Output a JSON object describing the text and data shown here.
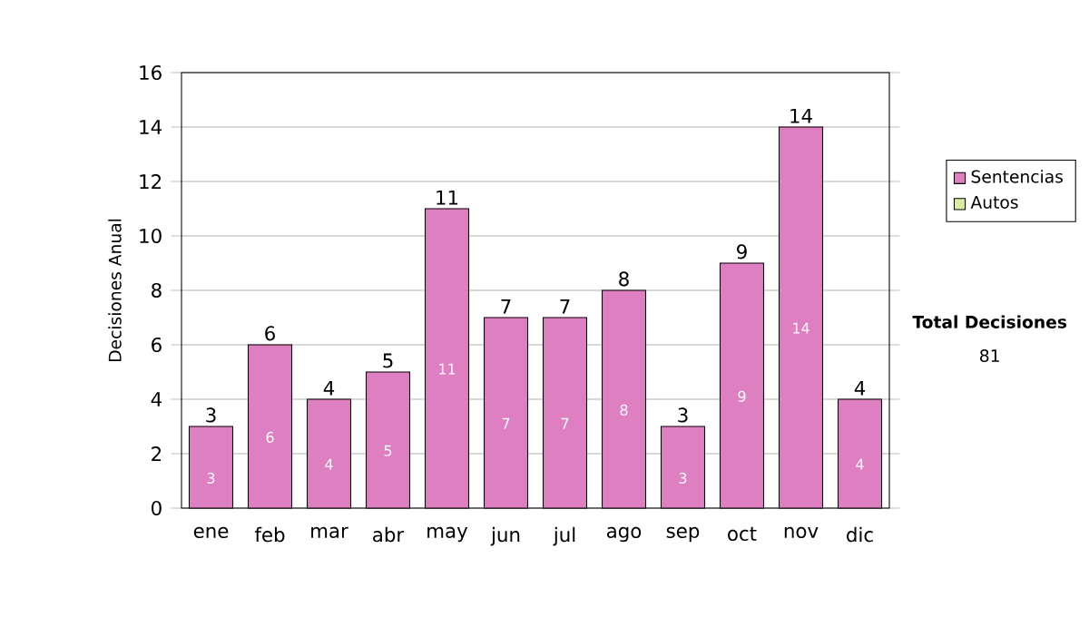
{
  "chart_data": {
    "type": "bar",
    "ylabel": "Decisiones Anual",
    "categories": [
      "ene",
      "feb",
      "mar",
      "abr",
      "may",
      "jun",
      "jul",
      "ago",
      "sep",
      "oct",
      "nov",
      "dic"
    ],
    "series": [
      {
        "name": "Sentencias",
        "color": "#dd7fc0",
        "values": [
          3,
          6,
          4,
          5,
          11,
          7,
          7,
          8,
          3,
          9,
          14,
          4
        ]
      },
      {
        "name": "Autos",
        "color": "#d8eda0",
        "values": [
          null,
          null,
          null,
          null,
          null,
          null,
          null,
          null,
          null,
          null,
          null,
          null
        ]
      }
    ],
    "stacked": true,
    "totals": [
      "3",
      "6",
      "4",
      "5",
      "11",
      "7",
      "7",
      "8",
      "3",
      "9",
      "14",
      "4"
    ],
    "data_labels": true,
    "ylim": [
      0,
      16
    ],
    "yticks": [
      0,
      2,
      4,
      6,
      8,
      10,
      12,
      14,
      16
    ],
    "grid": "y",
    "legend": "right",
    "annotations": [
      "Total Decisiones",
      "81"
    ]
  }
}
